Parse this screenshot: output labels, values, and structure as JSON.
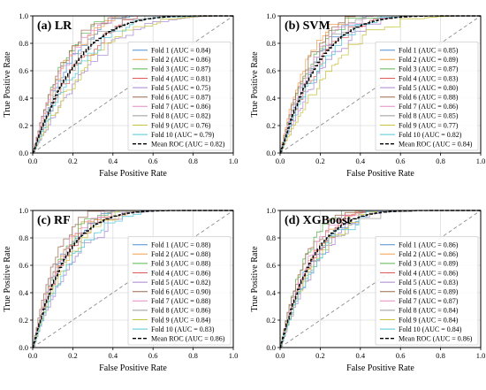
{
  "chart_data": [
    {
      "type": "line",
      "title": "(a) LR",
      "xlabel": "False Positive Rate",
      "ylabel": "True Positive Rate",
      "xlim": [
        0,
        1
      ],
      "ylim": [
        0,
        1
      ],
      "xticks": [
        "0.0",
        "0.2",
        "0.4",
        "0.6",
        "0.8",
        "1.0"
      ],
      "yticks": [
        "0.0",
        "0.2",
        "0.4",
        "0.6",
        "0.8",
        "1.0"
      ],
      "grid": true,
      "legend_position": "lower-right",
      "diagonal": true,
      "series": [
        {
          "name": "Fold 1 (AUC = 0.84)",
          "auc": 0.84,
          "color": "#4e8fd0"
        },
        {
          "name": "Fold 2 (AUC = 0.86)",
          "auc": 0.86,
          "color": "#f0a04b"
        },
        {
          "name": "Fold 3 (AUC = 0.87)",
          "auc": 0.87,
          "color": "#5ab552"
        },
        {
          "name": "Fold 4 (AUC = 0.81)",
          "auc": 0.81,
          "color": "#e05a5a"
        },
        {
          "name": "Fold 5 (AUC = 0.75)",
          "auc": 0.75,
          "color": "#a884d0"
        },
        {
          "name": "Fold 6 (AUC = 0.87)",
          "auc": 0.87,
          "color": "#9c6b4e"
        },
        {
          "name": "Fold 7 (AUC = 0.86)",
          "auc": 0.86,
          "color": "#e58cc6"
        },
        {
          "name": "Fold 8 (AUC = 0.82)",
          "auc": 0.82,
          "color": "#999999"
        },
        {
          "name": "Fold 9 (AUC = 0.76)",
          "auc": 0.76,
          "color": "#c9c23a"
        },
        {
          "name": "Fold 10 (AUC = 0.79)",
          "auc": 0.79,
          "color": "#4fc7d6"
        },
        {
          "name": "Mean ROC (AUC = 0.82)",
          "auc": 0.82,
          "color": "#000000",
          "mean": true
        }
      ]
    },
    {
      "type": "line",
      "title": "(b) SVM",
      "xlabel": "False Positive Rate",
      "ylabel": "True Positive Rate",
      "xlim": [
        0,
        1
      ],
      "ylim": [
        0,
        1
      ],
      "xticks": [
        "0.0",
        "0.2",
        "0.4",
        "0.6",
        "0.8",
        "1.0"
      ],
      "yticks": [
        "0.0",
        "0.2",
        "0.4",
        "0.6",
        "0.8",
        "1.0"
      ],
      "grid": true,
      "legend_position": "lower-right",
      "diagonal": true,
      "series": [
        {
          "name": "Fold 1 (AUC = 0.85)",
          "auc": 0.85,
          "color": "#4e8fd0"
        },
        {
          "name": "Fold 2 (AUC = 0.89)",
          "auc": 0.89,
          "color": "#f0a04b"
        },
        {
          "name": "Fold 3 (AUC = 0.87)",
          "auc": 0.87,
          "color": "#5ab552"
        },
        {
          "name": "Fold 4 (AUC = 0.83)",
          "auc": 0.83,
          "color": "#e05a5a"
        },
        {
          "name": "Fold 5 (AUC = 0.80)",
          "auc": 0.8,
          "color": "#a884d0"
        },
        {
          "name": "Fold 6 (AUC = 0.88)",
          "auc": 0.88,
          "color": "#9c6b4e"
        },
        {
          "name": "Fold 7 (AUC = 0.86)",
          "auc": 0.86,
          "color": "#e58cc6"
        },
        {
          "name": "Fold 8 (AUC = 0.85)",
          "auc": 0.85,
          "color": "#999999"
        },
        {
          "name": "Fold 9 (AUC = 0.77)",
          "auc": 0.77,
          "color": "#c9c23a"
        },
        {
          "name": "Fold 10 (AUC = 0.82)",
          "auc": 0.82,
          "color": "#4fc7d6"
        },
        {
          "name": "Mean ROC (AUC = 0.84)",
          "auc": 0.84,
          "color": "#000000",
          "mean": true
        }
      ]
    },
    {
      "type": "line",
      "title": "(c) RF",
      "xlabel": "False Positive Rate",
      "ylabel": "True Positive Rate",
      "xlim": [
        0,
        1
      ],
      "ylim": [
        0,
        1
      ],
      "xticks": [
        "0.0",
        "0.2",
        "0.4",
        "0.6",
        "0.8",
        "1.0"
      ],
      "yticks": [
        "0.0",
        "0.2",
        "0.4",
        "0.6",
        "0.8",
        "1.0"
      ],
      "grid": true,
      "legend_position": "lower-right",
      "diagonal": true,
      "series": [
        {
          "name": "Fold 1 (AUC = 0.88)",
          "auc": 0.88,
          "color": "#4e8fd0"
        },
        {
          "name": "Fold 2 (AUC = 0.88)",
          "auc": 0.88,
          "color": "#f0a04b"
        },
        {
          "name": "Fold 3 (AUC = 0.88)",
          "auc": 0.88,
          "color": "#5ab552"
        },
        {
          "name": "Fold 4 (AUC = 0.86)",
          "auc": 0.86,
          "color": "#e05a5a"
        },
        {
          "name": "Fold 5 (AUC = 0.82)",
          "auc": 0.82,
          "color": "#a884d0"
        },
        {
          "name": "Fold 6 (AUC = 0.90)",
          "auc": 0.9,
          "color": "#9c6b4e"
        },
        {
          "name": "Fold 7 (AUC = 0.88)",
          "auc": 0.88,
          "color": "#e58cc6"
        },
        {
          "name": "Fold 8 (AUC = 0.86)",
          "auc": 0.86,
          "color": "#999999"
        },
        {
          "name": "Fold 9 (AUC = 0.84)",
          "auc": 0.84,
          "color": "#c9c23a"
        },
        {
          "name": "Fold 10 (AUC = 0.83)",
          "auc": 0.83,
          "color": "#4fc7d6"
        },
        {
          "name": "Mean ROC (AUC = 0.86)",
          "auc": 0.86,
          "color": "#000000",
          "mean": true
        }
      ]
    },
    {
      "type": "line",
      "title": "(d) XGBoost",
      "xlabel": "False Positive Rate",
      "ylabel": "True Positive Rate",
      "xlim": [
        0,
        1
      ],
      "ylim": [
        0,
        1
      ],
      "xticks": [
        "0.0",
        "0.2",
        "0.4",
        "0.6",
        "0.8",
        "1.0"
      ],
      "yticks": [
        "0.0",
        "0.2",
        "0.4",
        "0.6",
        "0.8",
        "1.0"
      ],
      "grid": true,
      "legend_position": "lower-right",
      "diagonal": true,
      "series": [
        {
          "name": "Fold 1 (AUC = 0.86)",
          "auc": 0.86,
          "color": "#4e8fd0"
        },
        {
          "name": "Fold 2 (AUC = 0.86)",
          "auc": 0.86,
          "color": "#f0a04b"
        },
        {
          "name": "Fold 3 (AUC = 0.89)",
          "auc": 0.89,
          "color": "#5ab552"
        },
        {
          "name": "Fold 4 (AUC = 0.86)",
          "auc": 0.86,
          "color": "#e05a5a"
        },
        {
          "name": "Fold 5 (AUC = 0.83)",
          "auc": 0.83,
          "color": "#a884d0"
        },
        {
          "name": "Fold 6 (AUC = 0.89)",
          "auc": 0.89,
          "color": "#9c6b4e"
        },
        {
          "name": "Fold 7 (AUC = 0.87)",
          "auc": 0.87,
          "color": "#e58cc6"
        },
        {
          "name": "Fold 8 (AUC = 0.84)",
          "auc": 0.84,
          "color": "#999999"
        },
        {
          "name": "Fold 9 (AUC = 0.84)",
          "auc": 0.84,
          "color": "#c9c23a"
        },
        {
          "name": "Fold 10 (AUC = 0.84)",
          "auc": 0.84,
          "color": "#4fc7d6"
        },
        {
          "name": "Mean ROC (AUC = 0.86)",
          "auc": 0.86,
          "color": "#000000",
          "mean": true
        }
      ]
    }
  ]
}
